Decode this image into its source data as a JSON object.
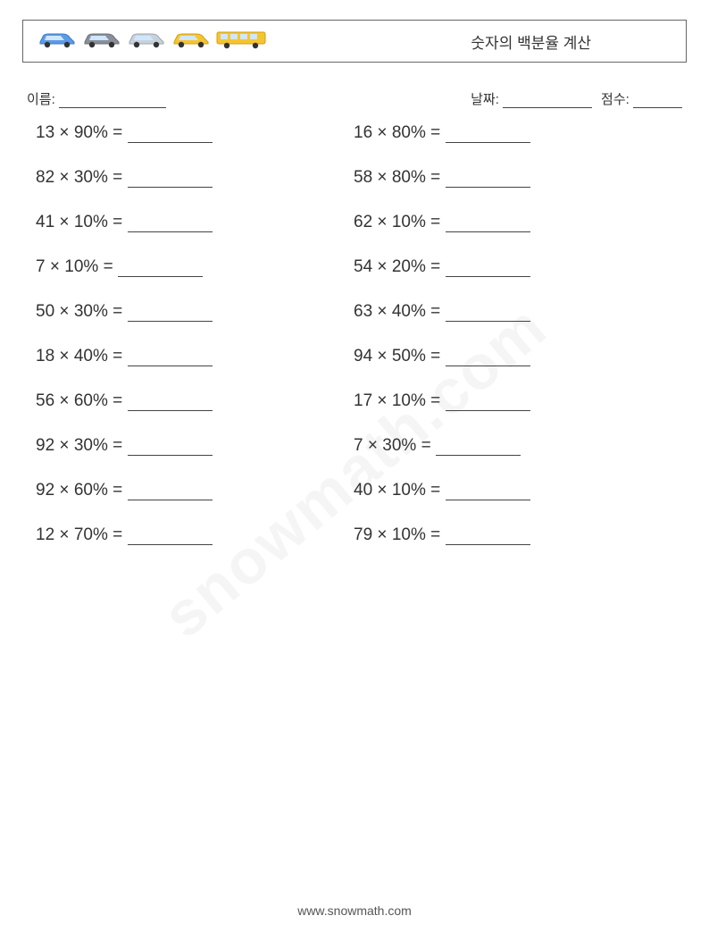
{
  "header": {
    "title": "숫자의 백분율 계산",
    "vehicles": [
      {
        "type": "car",
        "body": "#5c9be8",
        "accent": "#3d7ac9",
        "width": 44
      },
      {
        "type": "car",
        "body": "#8a8f99",
        "accent": "#6b7078",
        "width": 44
      },
      {
        "type": "car",
        "body": "#c9d2db",
        "accent": "#9aa6b0",
        "width": 44
      },
      {
        "type": "car",
        "body": "#f5c531",
        "accent": "#d49f14",
        "width": 44
      },
      {
        "type": "bus",
        "body": "#f5c531",
        "accent": "#d49f14",
        "width": 56
      }
    ]
  },
  "info": {
    "name_label": "이름:",
    "date_label": "날짜:",
    "score_label": "점수:",
    "name_blank_width": 120,
    "date_blank_width": 100,
    "score_blank_width": 55
  },
  "problems": {
    "operator": "×",
    "equals": "=",
    "percent": "%",
    "left": [
      {
        "a": 13,
        "p": 90
      },
      {
        "a": 82,
        "p": 30
      },
      {
        "a": 41,
        "p": 10
      },
      {
        "a": 7,
        "p": 10
      },
      {
        "a": 50,
        "p": 30
      },
      {
        "a": 18,
        "p": 40
      },
      {
        "a": 56,
        "p": 60
      },
      {
        "a": 92,
        "p": 30
      },
      {
        "a": 92,
        "p": 60
      },
      {
        "a": 12,
        "p": 70
      }
    ],
    "right": [
      {
        "a": 16,
        "p": 80
      },
      {
        "a": 58,
        "p": 80
      },
      {
        "a": 62,
        "p": 10
      },
      {
        "a": 54,
        "p": 20
      },
      {
        "a": 63,
        "p": 40
      },
      {
        "a": 94,
        "p": 50
      },
      {
        "a": 17,
        "p": 10
      },
      {
        "a": 7,
        "p": 30
      },
      {
        "a": 40,
        "p": 10
      },
      {
        "a": 79,
        "p": 10
      }
    ]
  },
  "watermark": "snowmath.com",
  "footer": "www.snowmath.com",
  "style": {
    "page_bg": "#ffffff",
    "text_color": "#333333",
    "border_color": "#666666",
    "blank_color": "#444444",
    "title_fontsize": 17,
    "info_fontsize": 15,
    "problem_fontsize": 19,
    "footer_fontsize": 14
  }
}
